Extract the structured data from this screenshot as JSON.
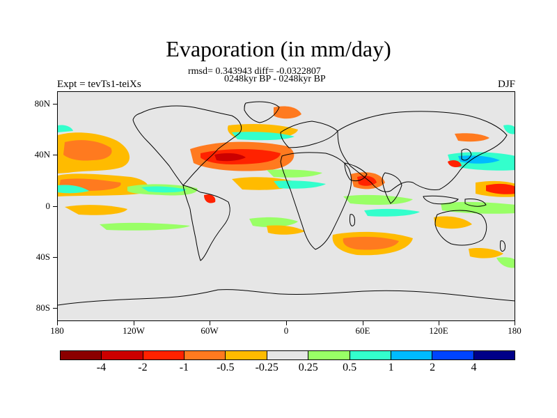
{
  "header": {
    "title": "Evaporation (in mm/day)",
    "stats_line": "rmsd= 0.343943 diff= -0.0322807",
    "period_line": "0248kyr BP - 0248kyr BP",
    "experiment_label": "Expt = tevTs1-teiXs",
    "season_label": "DJF"
  },
  "axes": {
    "y_ticks": [
      "80N",
      "40N",
      "0",
      "40S",
      "80S"
    ],
    "x_ticks": [
      "180",
      "120W",
      "60W",
      "0",
      "60E",
      "120E",
      "180"
    ]
  },
  "colorbar": {
    "colors": [
      "#8b0000",
      "#cc0000",
      "#ff2200",
      "#ff7a1f",
      "#ffbb00",
      "#e6e6e6",
      "#99ff66",
      "#33ffcc",
      "#00bbff",
      "#0044ff",
      "#000088"
    ],
    "labels": [
      "-4",
      "-2",
      "-1",
      "-0.5",
      "-0.25",
      "0.25",
      "0.5",
      "1",
      "2",
      "4"
    ]
  },
  "colors": {
    "background": "#e6e6e6",
    "coastline": "#000000"
  }
}
